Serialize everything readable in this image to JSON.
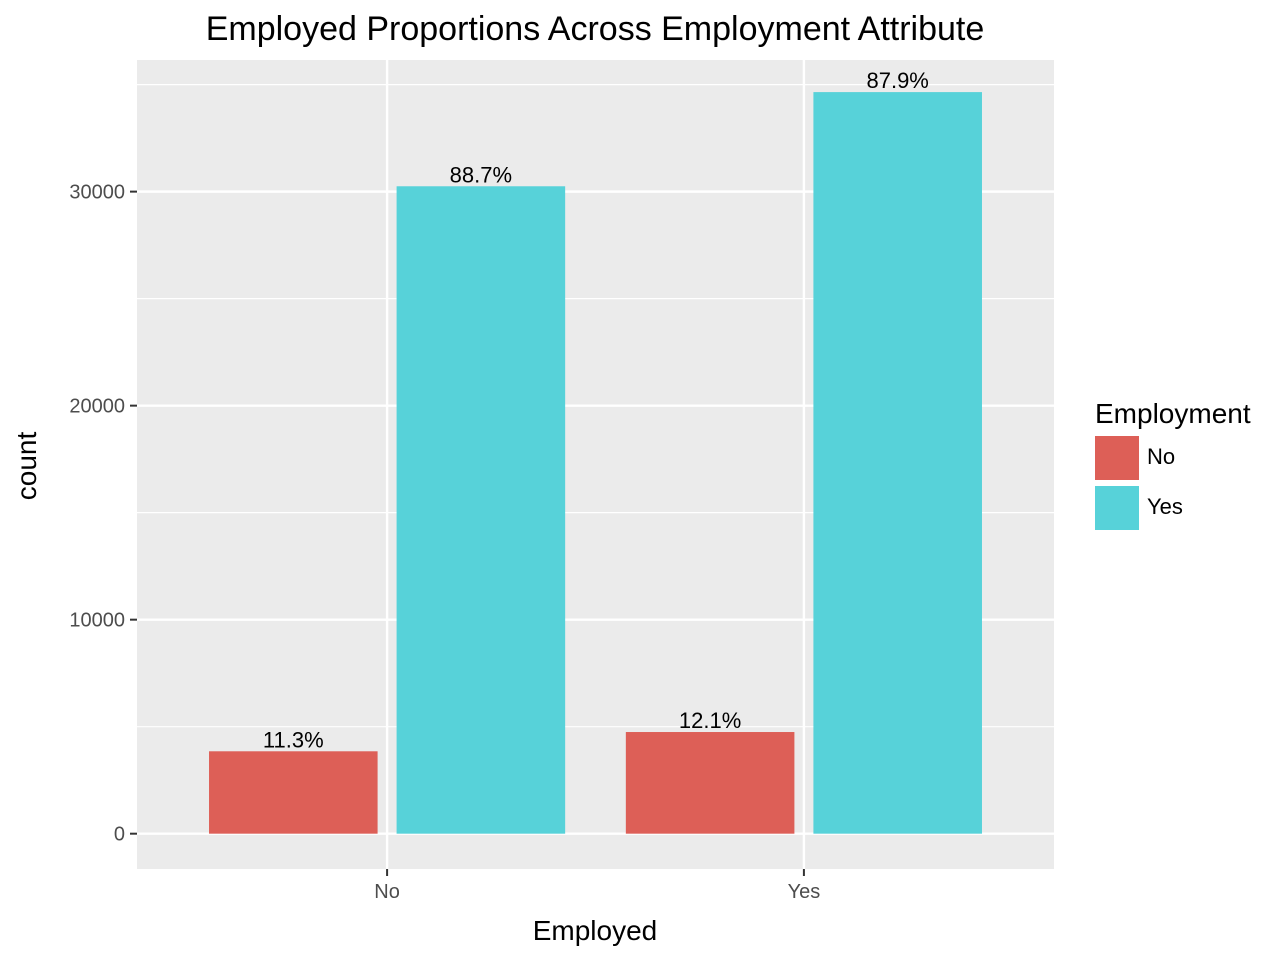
{
  "chart_data": {
    "type": "bar",
    "title": "Employed Proportions Across Employment Attribute",
    "xlabel": "Employed",
    "ylabel": "count",
    "categories": [
      "No",
      "Yes"
    ],
    "ylim": [
      -1650,
      36150
    ],
    "yticks": [
      0,
      10000,
      20000,
      30000
    ],
    "ytick_labels": [
      "0",
      "10000",
      "20000",
      "30000"
    ],
    "series": [
      {
        "name": "No",
        "color": "#dd5f57",
        "values": [
          3850,
          4750
        ],
        "labels": [
          "11.3%",
          "12.1%"
        ]
      },
      {
        "name": "Yes",
        "color": "#57d2d9",
        "values": [
          30250,
          34650
        ],
        "labels": [
          "88.7%",
          "87.9%"
        ]
      }
    ],
    "legend": {
      "title": "Employment",
      "position": "right"
    },
    "grid": true,
    "panel_color": "#ebebeb",
    "grid_color": "#ffffff"
  }
}
